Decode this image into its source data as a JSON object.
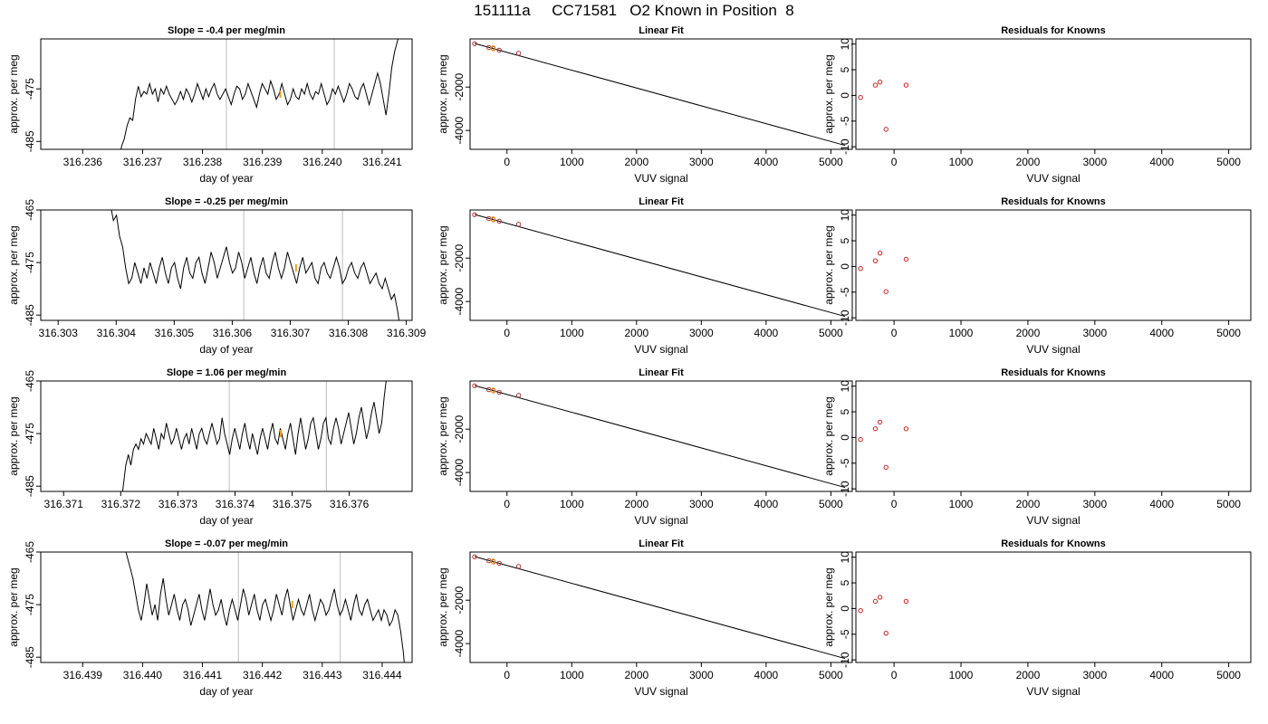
{
  "figure": {
    "title": "151111a     CC71581   O2 Known in Position  8"
  },
  "chart_data": [
    {
      "panel": "row1-timeseries",
      "type": "line",
      "title": "Slope =  -0.4  per meg/min",
      "xlabel": "day of year",
      "ylabel": "approx. per meg",
      "xlim": [
        316.2353,
        316.2415
      ],
      "ylim": [
        -486.5,
        -465.5
      ],
      "xticks": [
        316.236,
        316.237,
        316.238,
        316.239,
        316.24,
        316.241
      ],
      "xtick_labels": [
        "316.236",
        "316.237",
        "316.238",
        "316.239",
        "316.240",
        "316.241"
      ],
      "yticks": [
        -485,
        -475
      ],
      "ytick_labels": [
        "-485",
        "-475"
      ],
      "vlines": [
        316.2384,
        316.2402
      ],
      "highlight": {
        "x": 316.2393,
        "y": -476
      },
      "series": [
        {
          "x_start": 316.2366,
          "x_end": 316.2413,
          "y": [
            -490,
            -486,
            -484.5,
            -482,
            -480.5,
            -481,
            -477,
            -474.5,
            -476.5,
            -475.5,
            -476,
            -474,
            -476,
            -475,
            -477.5,
            -475,
            -476,
            -474.5,
            -476,
            -477,
            -478,
            -477,
            -475.5,
            -477,
            -475,
            -476,
            -477.5,
            -476,
            -474,
            -475.5,
            -477,
            -475,
            -476.5,
            -475,
            -474,
            -476,
            -477,
            -476,
            -475,
            -476.5,
            -478,
            -476,
            -474.5,
            -475,
            -477,
            -476,
            -474,
            -475.5,
            -477,
            -478.5,
            -476,
            -474,
            -475,
            -476,
            -473.5,
            -475,
            -477,
            -476,
            -474,
            -476,
            -478,
            -477,
            -475,
            -476.5,
            -477,
            -475,
            -476,
            -474,
            -476,
            -477,
            -475.5,
            -476,
            -474,
            -476,
            -478,
            -477,
            -475,
            -476,
            -474.5,
            -476,
            -477.5,
            -476,
            -474,
            -475,
            -476.5,
            -477,
            -475,
            -474,
            -476,
            -478,
            -476,
            -474,
            -472,
            -474,
            -477,
            -480,
            -476,
            -471,
            -468,
            -466,
            -464
          ]
        }
      ]
    },
    {
      "panel": "row1-fit",
      "type": "scatter",
      "title": "Linear Fit",
      "xlabel": "VUV signal",
      "ylabel": "approx. per meg",
      "xlim": [
        -570,
        5330
      ],
      "ylim": [
        -4870,
        220
      ],
      "xticks": [
        0,
        1000,
        2000,
        3000,
        4000,
        5000
      ],
      "xtick_labels": [
        "0",
        "1000",
        "2000",
        "3000",
        "4000",
        "5000"
      ],
      "yticks": [
        -4000,
        -2000
      ],
      "ytick_labels": [
        "-4000",
        "-2000"
      ],
      "fit_line": {
        "x": [
          -500,
          5220
        ],
        "y": [
          12,
          -4690
        ]
      },
      "points": {
        "x": [
          -500,
          -280,
          -210,
          -120,
          180
        ],
        "y": [
          0,
          -180,
          -230,
          -300,
          -440
        ]
      },
      "highlight": {
        "x": -215,
        "y": -205
      }
    },
    {
      "panel": "row1-residuals",
      "type": "scatter",
      "title": "Residuals for Knowns",
      "xlabel": "VUV signal",
      "ylabel": "approx. per meg",
      "xlim": [
        -570,
        5330
      ],
      "ylim": [
        -10.5,
        11
      ],
      "xticks": [
        0,
        1000,
        2000,
        3000,
        4000,
        5000
      ],
      "xtick_labels": [
        "0",
        "1000",
        "2000",
        "3000",
        "4000",
        "5000"
      ],
      "yticks": [
        -10,
        -5,
        0,
        5,
        10
      ],
      "ytick_labels": [
        "-10",
        "-5",
        "0",
        "5",
        "10"
      ],
      "points": {
        "x": [
          -500,
          -280,
          -210,
          -120,
          180
        ],
        "y": [
          -0.4,
          2.0,
          2.6,
          -6.6,
          2.0
        ]
      }
    },
    {
      "panel": "row2-timeseries",
      "type": "line",
      "title": "Slope =  -0.25  per meg/min",
      "xlabel": "day of year",
      "ylabel": "approx. per meg",
      "xlim": [
        316.3027,
        316.3091
      ],
      "ylim": [
        -486,
        -465
      ],
      "xticks": [
        316.303,
        316.304,
        316.305,
        316.306,
        316.307,
        316.308,
        316.309
      ],
      "xtick_labels": [
        "316.303",
        "316.304",
        "316.305",
        "316.306",
        "316.307",
        "316.308",
        "316.309"
      ],
      "yticks": [
        -485,
        -475,
        -465
      ],
      "ytick_labels": [
        "-485",
        "-475",
        "-465"
      ],
      "vlines": [
        316.3062,
        316.3079
      ],
      "highlight": {
        "x": 316.3071,
        "y": -476
      },
      "series": [
        {
          "x_start": 316.3039,
          "x_end": 316.3089,
          "y": [
            -464,
            -467,
            -466,
            -470,
            -472,
            -476,
            -479,
            -478,
            -475,
            -477,
            -479,
            -476,
            -478,
            -475,
            -477,
            -479,
            -476,
            -474,
            -477,
            -479,
            -476,
            -475,
            -478,
            -480,
            -476,
            -474,
            -477,
            -478,
            -475,
            -474,
            -477,
            -479,
            -476,
            -473,
            -475,
            -478,
            -476,
            -474,
            -472,
            -475,
            -477,
            -476,
            -473,
            -475,
            -478,
            -476,
            -474,
            -477,
            -479,
            -476,
            -474,
            -477,
            -478,
            -475,
            -473,
            -476,
            -478,
            -476,
            -473,
            -475,
            -477,
            -479,
            -476,
            -474,
            -477,
            -476,
            -475,
            -478,
            -479,
            -476,
            -475,
            -477,
            -478,
            -476,
            -474,
            -476,
            -479,
            -478,
            -476,
            -475,
            -477,
            -478,
            -476,
            -475,
            -477,
            -479,
            -478,
            -477,
            -479,
            -480,
            -478,
            -480,
            -482,
            -481,
            -484,
            -488
          ]
        }
      ]
    },
    {
      "panel": "row2-fit",
      "type": "scatter",
      "title": "Linear Fit",
      "xlabel": "VUV signal",
      "ylabel": "approx. per meg",
      "xlim": [
        -570,
        5330
      ],
      "ylim": [
        -4870,
        220
      ],
      "xticks": [
        0,
        1000,
        2000,
        3000,
        4000,
        5000
      ],
      "xtick_labels": [
        "0",
        "1000",
        "2000",
        "3000",
        "4000",
        "5000"
      ],
      "yticks": [
        -4000,
        -2000
      ],
      "ytick_labels": [
        "-4000",
        "-2000"
      ],
      "fit_line": {
        "x": [
          -500,
          5220
        ],
        "y": [
          12,
          -4690
        ]
      },
      "points": {
        "x": [
          -500,
          -280,
          -210,
          -120,
          180
        ],
        "y": [
          0,
          -180,
          -230,
          -300,
          -440
        ]
      },
      "highlight": {
        "x": -215,
        "y": -205
      }
    },
    {
      "panel": "row2-residuals",
      "type": "scatter",
      "title": "Residuals for Knowns",
      "xlabel": "VUV signal",
      "ylabel": "approx. per meg",
      "xlim": [
        -570,
        5330
      ],
      "ylim": [
        -10.5,
        11
      ],
      "xticks": [
        0,
        1000,
        2000,
        3000,
        4000,
        5000
      ],
      "xtick_labels": [
        "0",
        "1000",
        "2000",
        "3000",
        "4000",
        "5000"
      ],
      "yticks": [
        -10,
        -5,
        0,
        5,
        10
      ],
      "ytick_labels": [
        "-10",
        "-5",
        "0",
        "5",
        "10"
      ],
      "points": {
        "x": [
          -500,
          -280,
          -210,
          -120,
          180
        ],
        "y": [
          -0.4,
          1.1,
          2.6,
          -4.9,
          1.4
        ]
      }
    },
    {
      "panel": "row3-timeseries",
      "type": "line",
      "title": "Slope =  1.06  per meg/min",
      "xlabel": "day of year",
      "ylabel": "approx. per meg",
      "xlim": [
        316.3706,
        316.3771
      ],
      "ylim": [
        -486,
        -465
      ],
      "xticks": [
        316.371,
        316.372,
        316.373,
        316.374,
        316.375,
        316.376
      ],
      "xtick_labels": [
        "316.371",
        "316.372",
        "316.373",
        "316.374",
        "316.375",
        "316.376"
      ],
      "yticks": [
        -485,
        -475,
        -465
      ],
      "ytick_labels": [
        "-485",
        "-475",
        "-465"
      ],
      "vlines": [
        316.3739,
        316.3756
      ],
      "highlight": {
        "x": 316.3748,
        "y": -475
      },
      "series": [
        {
          "x_start": 316.372,
          "x_end": 316.3767,
          "y": [
            -489,
            -485,
            -481,
            -479,
            -481,
            -478,
            -477,
            -478,
            -476,
            -477,
            -475,
            -476,
            -477,
            -474,
            -476,
            -478,
            -475,
            -476,
            -473,
            -475,
            -477,
            -476,
            -474,
            -476,
            -478,
            -476,
            -475,
            -477,
            -474,
            -476,
            -478,
            -475,
            -474,
            -476,
            -477,
            -475,
            -473,
            -475,
            -477,
            -476,
            -472,
            -475,
            -477,
            -479,
            -476,
            -474,
            -476,
            -478,
            -475,
            -473,
            -476,
            -478,
            -475,
            -477,
            -479,
            -476,
            -474,
            -476,
            -478,
            -475,
            -473,
            -476,
            -477,
            -474,
            -476,
            -478,
            -475,
            -473,
            -476,
            -479,
            -475,
            -472,
            -475,
            -478,
            -476,
            -473,
            -472,
            -475,
            -478,
            -476,
            -473,
            -472,
            -476,
            -477,
            -474,
            -472,
            -474,
            -477,
            -475,
            -473,
            -471,
            -474,
            -477,
            -475,
            -472,
            -470,
            -473,
            -476,
            -474,
            -471,
            -469,
            -472,
            -475,
            -473,
            -468,
            -464,
            -462
          ]
        }
      ]
    },
    {
      "panel": "row3-fit",
      "type": "scatter",
      "title": "Linear Fit",
      "xlabel": "VUV signal",
      "ylabel": "approx. per meg",
      "xlim": [
        -570,
        5330
      ],
      "ylim": [
        -4870,
        220
      ],
      "xticks": [
        0,
        1000,
        2000,
        3000,
        4000,
        5000
      ],
      "xtick_labels": [
        "0",
        "1000",
        "2000",
        "3000",
        "4000",
        "5000"
      ],
      "yticks": [
        -4000,
        -2000
      ],
      "ytick_labels": [
        "-4000",
        "-2000"
      ],
      "fit_line": {
        "x": [
          -500,
          5220
        ],
        "y": [
          12,
          -4690
        ]
      },
      "points": {
        "x": [
          -500,
          -280,
          -210,
          -120,
          180
        ],
        "y": [
          0,
          -180,
          -230,
          -300,
          -440
        ]
      },
      "highlight": {
        "x": -215,
        "y": -205
      }
    },
    {
      "panel": "row3-residuals",
      "type": "scatter",
      "title": "Residuals for Knowns",
      "xlabel": "VUV signal",
      "ylabel": "approx. per meg",
      "xlim": [
        -570,
        5330
      ],
      "ylim": [
        -10.5,
        11
      ],
      "xticks": [
        0,
        1000,
        2000,
        3000,
        4000,
        5000
      ],
      "xtick_labels": [
        "0",
        "1000",
        "2000",
        "3000",
        "4000",
        "5000"
      ],
      "yticks": [
        -10,
        -5,
        0,
        5,
        10
      ],
      "ytick_labels": [
        "-10",
        "-5",
        "0",
        "5",
        "10"
      ],
      "points": {
        "x": [
          -500,
          -280,
          -210,
          -120,
          180
        ],
        "y": [
          -0.4,
          1.7,
          3.0,
          -5.8,
          1.7
        ]
      }
    },
    {
      "panel": "row4-timeseries",
      "type": "line",
      "title": "Slope =  -0.07  per meg/min",
      "xlabel": "day of year",
      "ylabel": "approx. per meg",
      "xlim": [
        316.4383,
        316.4445
      ],
      "ylim": [
        -486,
        -465
      ],
      "xticks": [
        316.439,
        316.44,
        316.441,
        316.442,
        316.443,
        316.444
      ],
      "xtick_labels": [
        "316.439",
        "316.440",
        "316.441",
        "316.442",
        "316.443",
        "316.444"
      ],
      "yticks": [
        -485,
        -475,
        -465
      ],
      "ytick_labels": [
        "-485",
        "-475",
        "-465"
      ],
      "vlines": [
        316.4416,
        316.4433
      ],
      "highlight": {
        "x": 316.4425,
        "y": -475
      },
      "series": [
        {
          "x_start": 316.4397,
          "x_end": 316.4444,
          "y": [
            -464,
            -466,
            -468,
            -470,
            -473,
            -476,
            -478,
            -475,
            -471,
            -474,
            -477,
            -475,
            -478,
            -473,
            -470,
            -474,
            -477,
            -475,
            -473,
            -476,
            -478,
            -475,
            -474,
            -476,
            -479,
            -477,
            -475,
            -473,
            -476,
            -478,
            -475,
            -472,
            -475,
            -477,
            -476,
            -474,
            -477,
            -479,
            -476,
            -474,
            -476,
            -478,
            -475,
            -472,
            -474,
            -477,
            -475,
            -473,
            -476,
            -478,
            -475,
            -474,
            -476,
            -478,
            -476,
            -473,
            -475,
            -477,
            -474,
            -472,
            -475,
            -478,
            -476,
            -474,
            -476,
            -477,
            -475,
            -473,
            -476,
            -478,
            -476,
            -474,
            -475,
            -477,
            -476,
            -474,
            -472,
            -475,
            -477,
            -476,
            -474,
            -476,
            -478,
            -475,
            -473,
            -476,
            -477,
            -475,
            -474,
            -476,
            -478,
            -477,
            -476,
            -478,
            -476,
            -477,
            -479,
            -478,
            -476,
            -477,
            -480,
            -484,
            -490
          ]
        }
      ]
    },
    {
      "panel": "row4-fit",
      "type": "scatter",
      "title": "Linear Fit",
      "xlabel": "VUV signal",
      "ylabel": "approx. per meg",
      "xlim": [
        -570,
        5330
      ],
      "ylim": [
        -4870,
        220
      ],
      "xticks": [
        0,
        1000,
        2000,
        3000,
        4000,
        5000
      ],
      "xtick_labels": [
        "0",
        "1000",
        "2000",
        "3000",
        "4000",
        "5000"
      ],
      "yticks": [
        -4000,
        -2000
      ],
      "ytick_labels": [
        "-4000",
        "-2000"
      ],
      "fit_line": {
        "x": [
          -500,
          5220
        ],
        "y": [
          12,
          -4690
        ]
      },
      "points": {
        "x": [
          -500,
          -280,
          -210,
          -120,
          180
        ],
        "y": [
          0,
          -180,
          -230,
          -300,
          -440
        ]
      },
      "highlight": {
        "x": -215,
        "y": -205
      }
    },
    {
      "panel": "row4-residuals",
      "type": "scatter",
      "title": "Residuals for Knowns",
      "xlabel": "VUV signal",
      "ylabel": "approx. per meg",
      "xlim": [
        -570,
        5330
      ],
      "ylim": [
        -10.5,
        11
      ],
      "xticks": [
        0,
        1000,
        2000,
        3000,
        4000,
        5000
      ],
      "xtick_labels": [
        "0",
        "1000",
        "2000",
        "3000",
        "4000",
        "5000"
      ],
      "yticks": [
        -10,
        -5,
        0,
        5,
        10
      ],
      "ytick_labels": [
        "-10",
        "-5",
        "0",
        "5",
        "10"
      ],
      "points": {
        "x": [
          -500,
          -280,
          -210,
          -120,
          180
        ],
        "y": [
          -0.4,
          1.4,
          2.2,
          -4.8,
          1.4
        ]
      }
    }
  ],
  "colors": {
    "line": "#000000",
    "vline": "#c8c8c8",
    "highlight": "#f0a020",
    "residual_point": "#cc2222",
    "fit_point": "#aa3333"
  }
}
